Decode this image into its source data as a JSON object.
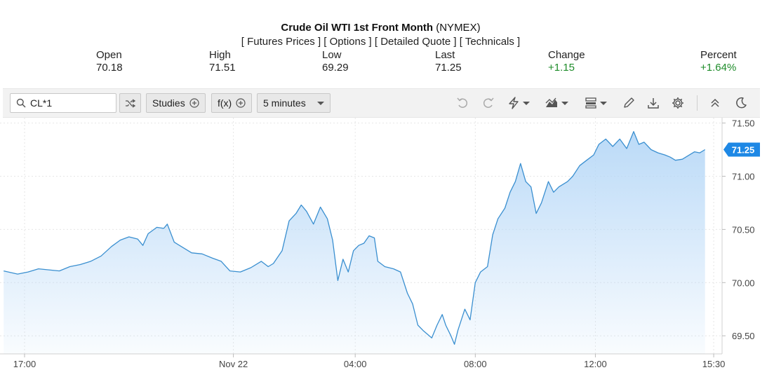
{
  "header": {
    "title_name": "Crude Oil WTI 1st Front Month",
    "title_exchange": "(NYMEX)",
    "links": [
      "Futures Prices",
      "Options",
      "Detailed Quote",
      "Technicals"
    ]
  },
  "stats": {
    "open": {
      "label": "Open",
      "value": "70.18"
    },
    "high": {
      "label": "High",
      "value": "71.51"
    },
    "low": {
      "label": "Low",
      "value": "69.29"
    },
    "last": {
      "label": "Last",
      "value": "71.25"
    },
    "change": {
      "label": "Change",
      "value": "+1.15"
    },
    "percent": {
      "label": "Percent",
      "value": "+1.64%"
    }
  },
  "toolbar": {
    "symbol": "CL*1",
    "studies_label": "Studies",
    "fx_label": "f(x)",
    "interval_label": "5 minutes"
  },
  "colors": {
    "line": "#3a8fd0",
    "fill_top": "#b7d8f7",
    "badge": "#1e88e5",
    "positive": "#1e8c2a"
  },
  "chart_data": {
    "type": "area",
    "title": "",
    "xlabel": "",
    "ylabel": "",
    "ylim": [
      69.33,
      71.55
    ],
    "yticks": [
      71.5,
      71.0,
      70.5,
      70.0,
      69.5
    ],
    "ytick_labels": [
      "71.50",
      "71.00",
      "70.50",
      "70.00",
      "69.50"
    ],
    "xticks": [
      {
        "t": 0.2,
        "label": "17:00"
      },
      {
        "t": 6.2,
        "label": "Nov 22"
      },
      {
        "t": 9.7,
        "label": "04:00"
      },
      {
        "t": 13.15,
        "label": "08:00"
      },
      {
        "t": 16.6,
        "label": "12:00"
      },
      {
        "t": 20.0,
        "label": "15:30"
      }
    ],
    "last_value_label": "71.25",
    "series": [
      {
        "points": [
          [
            -0.4,
            70.11
          ],
          [
            0.0,
            70.08
          ],
          [
            0.3,
            70.1
          ],
          [
            0.6,
            70.13
          ],
          [
            0.9,
            70.12
          ],
          [
            1.2,
            70.11
          ],
          [
            1.5,
            70.15
          ],
          [
            1.8,
            70.17
          ],
          [
            2.1,
            70.2
          ],
          [
            2.4,
            70.25
          ],
          [
            2.7,
            70.34
          ],
          [
            2.95,
            70.4
          ],
          [
            3.2,
            70.43
          ],
          [
            3.45,
            70.41
          ],
          [
            3.6,
            70.35
          ],
          [
            3.75,
            70.46
          ],
          [
            4.0,
            70.52
          ],
          [
            4.2,
            70.51
          ],
          [
            4.3,
            70.55
          ],
          [
            4.5,
            70.38
          ],
          [
            4.7,
            70.34
          ],
          [
            5.0,
            70.28
          ],
          [
            5.3,
            70.27
          ],
          [
            5.6,
            70.23
          ],
          [
            5.85,
            70.2
          ],
          [
            6.1,
            70.11
          ],
          [
            6.4,
            70.1
          ],
          [
            6.7,
            70.14
          ],
          [
            7.0,
            70.2
          ],
          [
            7.2,
            70.15
          ],
          [
            7.35,
            70.18
          ],
          [
            7.6,
            70.3
          ],
          [
            7.8,
            70.58
          ],
          [
            8.0,
            70.65
          ],
          [
            8.15,
            70.73
          ],
          [
            8.3,
            70.67
          ],
          [
            8.5,
            70.55
          ],
          [
            8.7,
            70.71
          ],
          [
            8.9,
            70.6
          ],
          [
            9.05,
            70.4
          ],
          [
            9.2,
            70.02
          ],
          [
            9.35,
            70.22
          ],
          [
            9.5,
            70.1
          ],
          [
            9.65,
            70.3
          ],
          [
            9.8,
            70.35
          ],
          [
            9.95,
            70.37
          ],
          [
            10.1,
            70.44
          ],
          [
            10.25,
            70.42
          ],
          [
            10.35,
            70.2
          ],
          [
            10.55,
            70.15
          ],
          [
            10.8,
            70.13
          ],
          [
            11.0,
            70.1
          ],
          [
            11.2,
            69.9
          ],
          [
            11.35,
            69.8
          ],
          [
            11.5,
            69.6
          ],
          [
            11.65,
            69.55
          ],
          [
            11.9,
            69.48
          ],
          [
            12.05,
            69.6
          ],
          [
            12.2,
            69.7
          ],
          [
            12.3,
            69.6
          ],
          [
            12.45,
            69.5
          ],
          [
            12.55,
            69.42
          ],
          [
            12.65,
            69.55
          ],
          [
            12.85,
            69.75
          ],
          [
            13.0,
            69.65
          ],
          [
            13.15,
            70.0
          ],
          [
            13.3,
            70.1
          ],
          [
            13.5,
            70.15
          ],
          [
            13.65,
            70.45
          ],
          [
            13.8,
            70.6
          ],
          [
            14.0,
            70.7
          ],
          [
            14.15,
            70.85
          ],
          [
            14.3,
            70.95
          ],
          [
            14.45,
            71.12
          ],
          [
            14.6,
            70.95
          ],
          [
            14.75,
            70.9
          ],
          [
            14.9,
            70.65
          ],
          [
            15.05,
            70.75
          ],
          [
            15.25,
            70.95
          ],
          [
            15.4,
            70.85
          ],
          [
            15.55,
            70.9
          ],
          [
            15.8,
            70.95
          ],
          [
            15.95,
            71.0
          ],
          [
            16.15,
            71.1
          ],
          [
            16.35,
            71.15
          ],
          [
            16.55,
            71.2
          ],
          [
            16.7,
            71.3
          ],
          [
            16.9,
            71.35
          ],
          [
            17.1,
            71.28
          ],
          [
            17.3,
            71.35
          ],
          [
            17.5,
            71.26
          ],
          [
            17.7,
            71.42
          ],
          [
            17.85,
            71.3
          ],
          [
            18.0,
            71.32
          ],
          [
            18.2,
            71.25
          ],
          [
            18.4,
            71.22
          ],
          [
            18.6,
            71.2
          ],
          [
            18.75,
            71.18
          ],
          [
            18.9,
            71.15
          ],
          [
            19.1,
            71.16
          ],
          [
            19.3,
            71.2
          ],
          [
            19.45,
            71.23
          ],
          [
            19.6,
            71.22
          ],
          [
            19.75,
            71.25
          ]
        ]
      }
    ]
  }
}
